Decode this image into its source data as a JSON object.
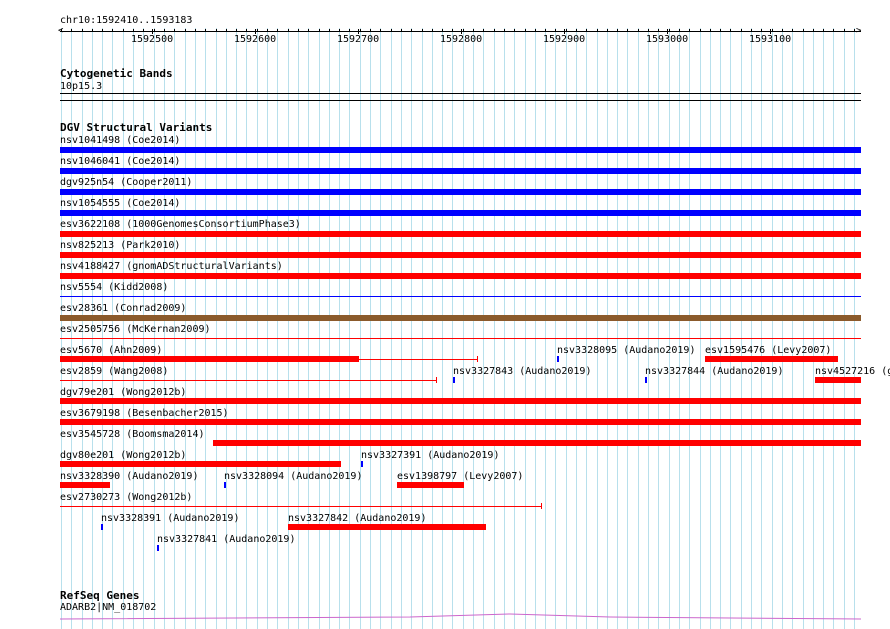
{
  "ruler": {
    "label": "chr10:1592410..1593183",
    "tick_labels": [
      "1592500",
      "1592600",
      "1592700",
      "1592800",
      "1592900",
      "1593000",
      "1593100"
    ]
  },
  "cytoband_track": {
    "title": "Cytogenetic Bands",
    "band_label": "10p15.3"
  },
  "dgv_track": {
    "title": "DGV Structural Variants",
    "variants": [
      {
        "label": "nsv1041498 (Coe2014)",
        "color": "#0000ff"
      },
      {
        "label": "nsv1046041 (Coe2014)",
        "color": "#0000ff"
      },
      {
        "label": "dgv925n54 (Cooper2011)",
        "color": "#0000ff"
      },
      {
        "label": "nsv1054555 (Coe2014)",
        "color": "#0000ff"
      },
      {
        "label": "esv3622108 (1000GenomesConsortiumPhase3)",
        "color": "#ff0000"
      },
      {
        "label": "nsv825213 (Park2010)",
        "color": "#ff0000"
      },
      {
        "label": "nsv4188427 (gnomADStructuralVariants)",
        "color": "#ff0000"
      },
      {
        "label": "nsv5554 (Kidd2008)",
        "color": "#0000ff"
      },
      {
        "label": "esv28361 (Conrad2009)",
        "color": "#8b5a2b"
      },
      {
        "label": "esv2505756 (McKernan2009)",
        "color": "#ff0000"
      },
      {
        "label": "esv5670 (Ahn2009)",
        "color": "#ff0000"
      },
      {
        "label": "nsv3328095 (Audano2019)",
        "color": "#0000ff"
      },
      {
        "label": "esv1595476 (Levy2007)",
        "color": "#ff0000"
      },
      {
        "label": "esv2859 (Wang2008)",
        "color": "#ff0000"
      },
      {
        "label": "nsv3327843 (Audano2019)",
        "color": "#0000ff"
      },
      {
        "label": "nsv3327844 (Audano2019)",
        "color": "#0000ff"
      },
      {
        "label": "nsv4527216 (g",
        "color": "#ff0000"
      },
      {
        "label": "dgv79e201 (Wong2012b)",
        "color": "#ff0000"
      },
      {
        "label": "esv3679198 (Besenbacher2015)",
        "color": "#ff0000"
      },
      {
        "label": "esv3545728 (Boomsma2014)",
        "color": "#ff0000"
      },
      {
        "label": "dgv80e201 (Wong2012b)",
        "color": "#ff0000"
      },
      {
        "label": "nsv3327391 (Audano2019)",
        "color": "#0000ff"
      },
      {
        "label": "nsv3328390 (Audano2019)",
        "color": "#ff0000"
      },
      {
        "label": "nsv3328094 (Audano2019)",
        "color": "#0000ff"
      },
      {
        "label": "esv1398797 (Levy2007)",
        "color": "#ff0000"
      },
      {
        "label": "esv2730273 (Wong2012b)",
        "color": "#ff0000"
      },
      {
        "label": "nsv3328391 (Audano2019)",
        "color": "#0000ff"
      },
      {
        "label": "nsv3327842 (Audano2019)",
        "color": "#ff0000"
      },
      {
        "label": "nsv3327841 (Audano2019)",
        "color": "#0000ff"
      }
    ]
  },
  "refseq_track": {
    "title": "RefSeq Genes",
    "gene_label": "ADARB2|NM_018702",
    "color": "#cc66cc"
  },
  "colors": {
    "grid": "#b8e0ec",
    "gain": "#0000ff",
    "loss": "#ff0000",
    "gain_loss": "#8b5a2b",
    "gene": "#cc66cc"
  }
}
